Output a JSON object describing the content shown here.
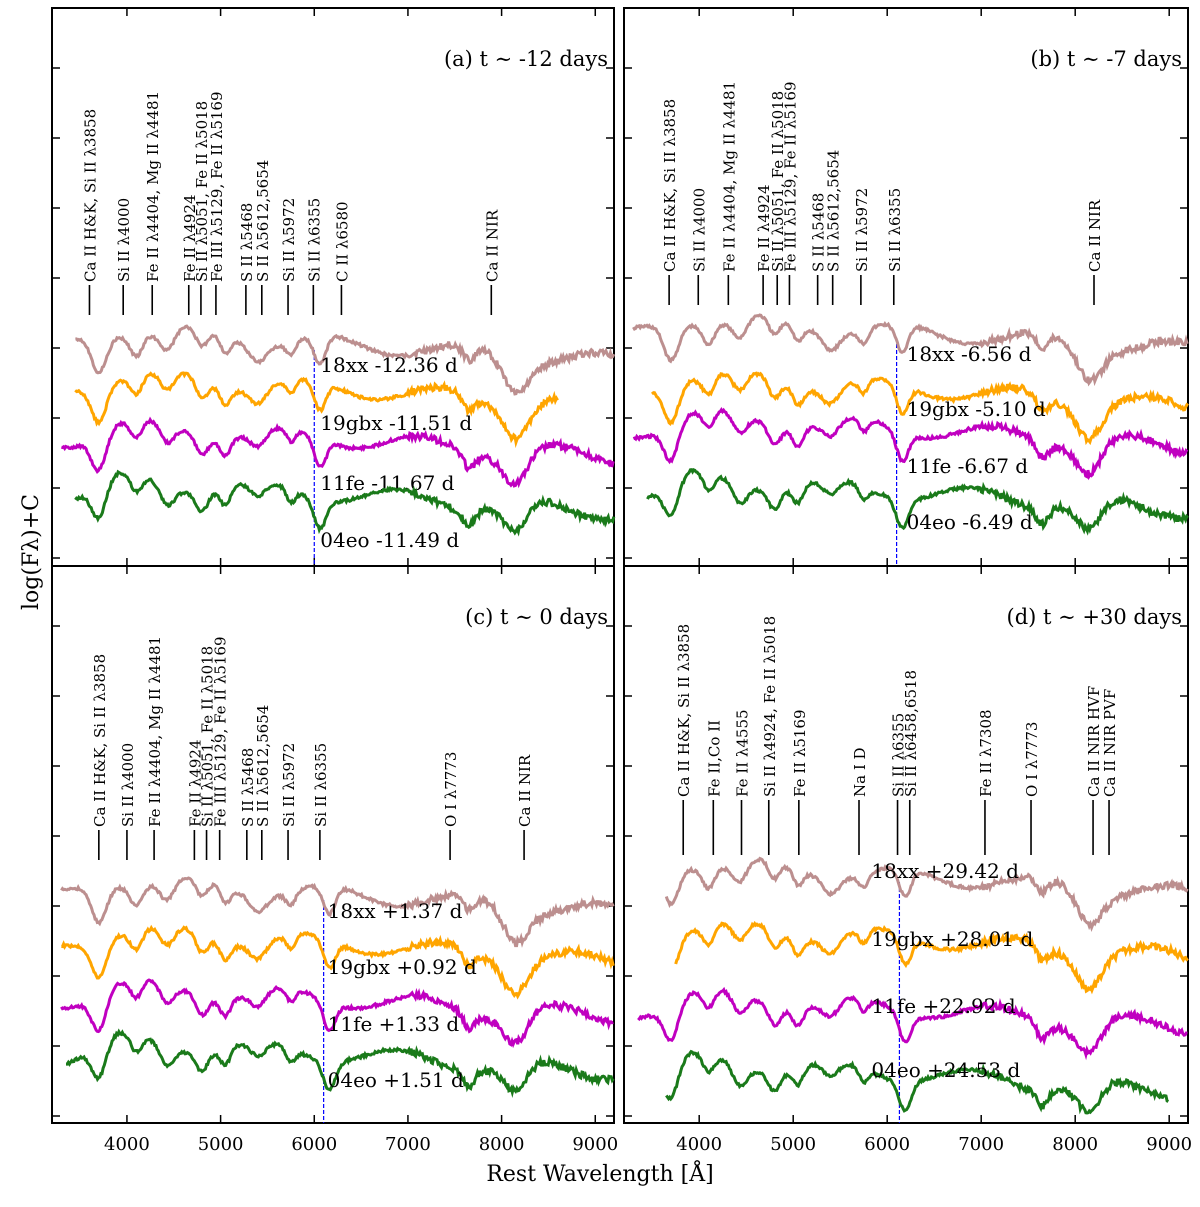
{
  "figure": {
    "ylabel": "log(Fλ)+C",
    "xlabel": "Rest Wavelength [Å]",
    "xticks": [
      4000,
      5000,
      6000,
      7000,
      8000,
      9000
    ],
    "xlim": [
      3200,
      9200
    ]
  },
  "colors": {
    "18xx": "#bc8f8f",
    "19gbx": "#ffa500",
    "11fe": "#c000c0",
    "04eo": "#1a7a1a",
    "si_line": "#0000ff"
  },
  "chart_data": [
    {
      "type": "line",
      "panel": "a",
      "title": "(a) t ∼ -12 days",
      "xlim": [
        3200,
        9200
      ],
      "si_line_wavelength": 6000,
      "series": [
        {
          "name": "18xx",
          "label": "18xx -12.36 d",
          "start": 3450,
          "end": 9200,
          "offset": 0.0
        },
        {
          "name": "19gbx",
          "label": "19gbx -11.51 d",
          "start": 3450,
          "end": 8600,
          "offset": 1.0
        },
        {
          "name": "11fe",
          "label": "11fe -11.67 d",
          "start": 3300,
          "end": 9200,
          "offset": 2.0
        },
        {
          "name": "04eo",
          "label": "04eo -11.49 d",
          "start": 3450,
          "end": 9200,
          "offset": 3.0
        }
      ],
      "annotations": [
        {
          "text": "Ca II H&K, Si II λ3858",
          "wavelength": 3600
        },
        {
          "text": "Si II λ4000",
          "wavelength": 3960
        },
        {
          "text": "Fe II λ4404, Mg II λ4481",
          "wavelength": 4270
        },
        {
          "text": "Fe II λ4924",
          "wavelength": 4660
        },
        {
          "text": "Si II λ5051, Fe II λ5018",
          "wavelength": 4790
        },
        {
          "text": "Fe III λ5129, Fe II λ5169",
          "wavelength": 4950
        },
        {
          "text": "S II λ5468",
          "wavelength": 5270
        },
        {
          "text": "S II λ5612,5654",
          "wavelength": 5440
        },
        {
          "text": "Si II λ5972",
          "wavelength": 5720
        },
        {
          "text": "Si II λ6355",
          "wavelength": 5990
        },
        {
          "text": "C II λ6580",
          "wavelength": 6290
        },
        {
          "text": "Ca II NIR",
          "wavelength": 7890
        }
      ]
    },
    {
      "type": "line",
      "panel": "b",
      "title": "(b) t ∼ -7 days",
      "xlim": [
        3200,
        9200
      ],
      "si_line_wavelength": 6100,
      "series": [
        {
          "name": "18xx",
          "label": "18xx -6.56 d",
          "start": 3300,
          "end": 9200,
          "offset": 0.0
        },
        {
          "name": "19gbx",
          "label": "19gbx -5.10 d",
          "start": 3500,
          "end": 9200,
          "offset": 1.0
        },
        {
          "name": "11fe",
          "label": "11fe -6.67 d",
          "start": 3300,
          "end": 9200,
          "offset": 2.0
        },
        {
          "name": "04eo",
          "label": "04eo -6.49 d",
          "start": 3450,
          "end": 9200,
          "offset": 3.0
        }
      ],
      "annotations": [
        {
          "text": "Ca II H&K, Si II λ3858",
          "wavelength": 3680
        },
        {
          "text": "Si II λ4000",
          "wavelength": 3990
        },
        {
          "text": "Fe II λ4404, Mg II λ4481",
          "wavelength": 4310
        },
        {
          "text": "Fe II λ4924",
          "wavelength": 4680
        },
        {
          "text": "Si II λ5051, Fe II λ5018",
          "wavelength": 4830
        },
        {
          "text": "Fe III λ5129, Fe II λ5169",
          "wavelength": 4960
        },
        {
          "text": "S II λ5468",
          "wavelength": 5260
        },
        {
          "text": "S II λ5612,5654",
          "wavelength": 5420
        },
        {
          "text": "Si II λ5972",
          "wavelength": 5720
        },
        {
          "text": "Si II λ6355",
          "wavelength": 6070
        },
        {
          "text": "Ca II NIR",
          "wavelength": 8200
        }
      ]
    },
    {
      "type": "line",
      "panel": "c",
      "title": "(c) t ∼ 0 days",
      "xlim": [
        3200,
        9200
      ],
      "si_line_wavelength": 6100,
      "series": [
        {
          "name": "18xx",
          "label": "18xx +1.37 d",
          "start": 3300,
          "end": 9200,
          "offset": 0.0
        },
        {
          "name": "19gbx",
          "label": "19gbx +0.92 d",
          "start": 3300,
          "end": 9200,
          "offset": 1.0
        },
        {
          "name": "11fe",
          "label": "11fe +1.33 d",
          "start": 3300,
          "end": 9200,
          "offset": 2.0
        },
        {
          "name": "04eo",
          "label": "04eo +1.51 d",
          "start": 3350,
          "end": 9200,
          "offset": 3.0
        }
      ],
      "annotations": [
        {
          "text": "Ca II H&K, Si II λ3858",
          "wavelength": 3700
        },
        {
          "text": "Si II λ4000",
          "wavelength": 4000
        },
        {
          "text": "Fe II λ4404, Mg II λ4481",
          "wavelength": 4290
        },
        {
          "text": "Fe II λ4924",
          "wavelength": 4720
        },
        {
          "text": "Si II λ5051, Fe II λ5018",
          "wavelength": 4850
        },
        {
          "text": "Fe III λ5129, Fe II λ5169",
          "wavelength": 4990
        },
        {
          "text": "S II λ5468",
          "wavelength": 5280
        },
        {
          "text": "S II λ5612,5654",
          "wavelength": 5440
        },
        {
          "text": "Si II λ5972",
          "wavelength": 5720
        },
        {
          "text": "Si II λ6355",
          "wavelength": 6060
        },
        {
          "text": "O I λ7773",
          "wavelength": 7450
        },
        {
          "text": "Ca II NIR",
          "wavelength": 8240
        }
      ]
    },
    {
      "type": "line",
      "panel": "d",
      "title": "(d) t ∼ +30 days",
      "xlim": [
        3200,
        9200
      ],
      "si_line_wavelength": 6130,
      "series": [
        {
          "name": "18xx",
          "label": "18xx +29.42 d",
          "start": 3650,
          "end": 9200,
          "offset": 0.0
        },
        {
          "name": "19gbx",
          "label": "19gbx +28.01 d",
          "start": 3750,
          "end": 9200,
          "offset": 1.0
        },
        {
          "name": "11fe",
          "label": "11fe +22.92 d",
          "start": 3350,
          "end": 9200,
          "offset": 2.0
        },
        {
          "name": "04eo",
          "label": "04eo +24.53 d",
          "start": 3650,
          "end": 9000,
          "offset": 3.0
        }
      ],
      "annotations": [
        {
          "text": "Ca II H&K, Si II λ3858",
          "wavelength": 3830
        },
        {
          "text": "Fe II,Co II",
          "wavelength": 4150
        },
        {
          "text": "Fe II λ4555",
          "wavelength": 4450
        },
        {
          "text": "Si II λ4924, Fe II λ5018",
          "wavelength": 4740
        },
        {
          "text": "Fe II λ5169",
          "wavelength": 5060
        },
        {
          "text": "Na I D",
          "wavelength": 5700
        },
        {
          "text": "Si II λ6355",
          "wavelength": 6110
        },
        {
          "text": "Si II λ6458,6518",
          "wavelength": 6240
        },
        {
          "text": "Fe II λ7308",
          "wavelength": 7040
        },
        {
          "text": "O I λ7773",
          "wavelength": 7530
        },
        {
          "text": "Ca II NIR HVF",
          "wavelength": 8190
        },
        {
          "text": "Ca II NIR PVF",
          "wavelength": 8360
        }
      ]
    }
  ]
}
